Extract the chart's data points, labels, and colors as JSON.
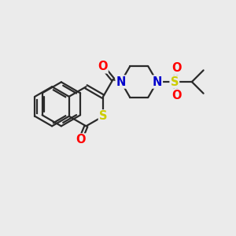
{
  "bg_color": "#ebebeb",
  "bond_color": "#2a2a2a",
  "bond_width": 1.6,
  "atom_colors": {
    "S": "#cccc00",
    "O": "#ff0000",
    "N": "#0000cc"
  },
  "font_size": 10.5
}
